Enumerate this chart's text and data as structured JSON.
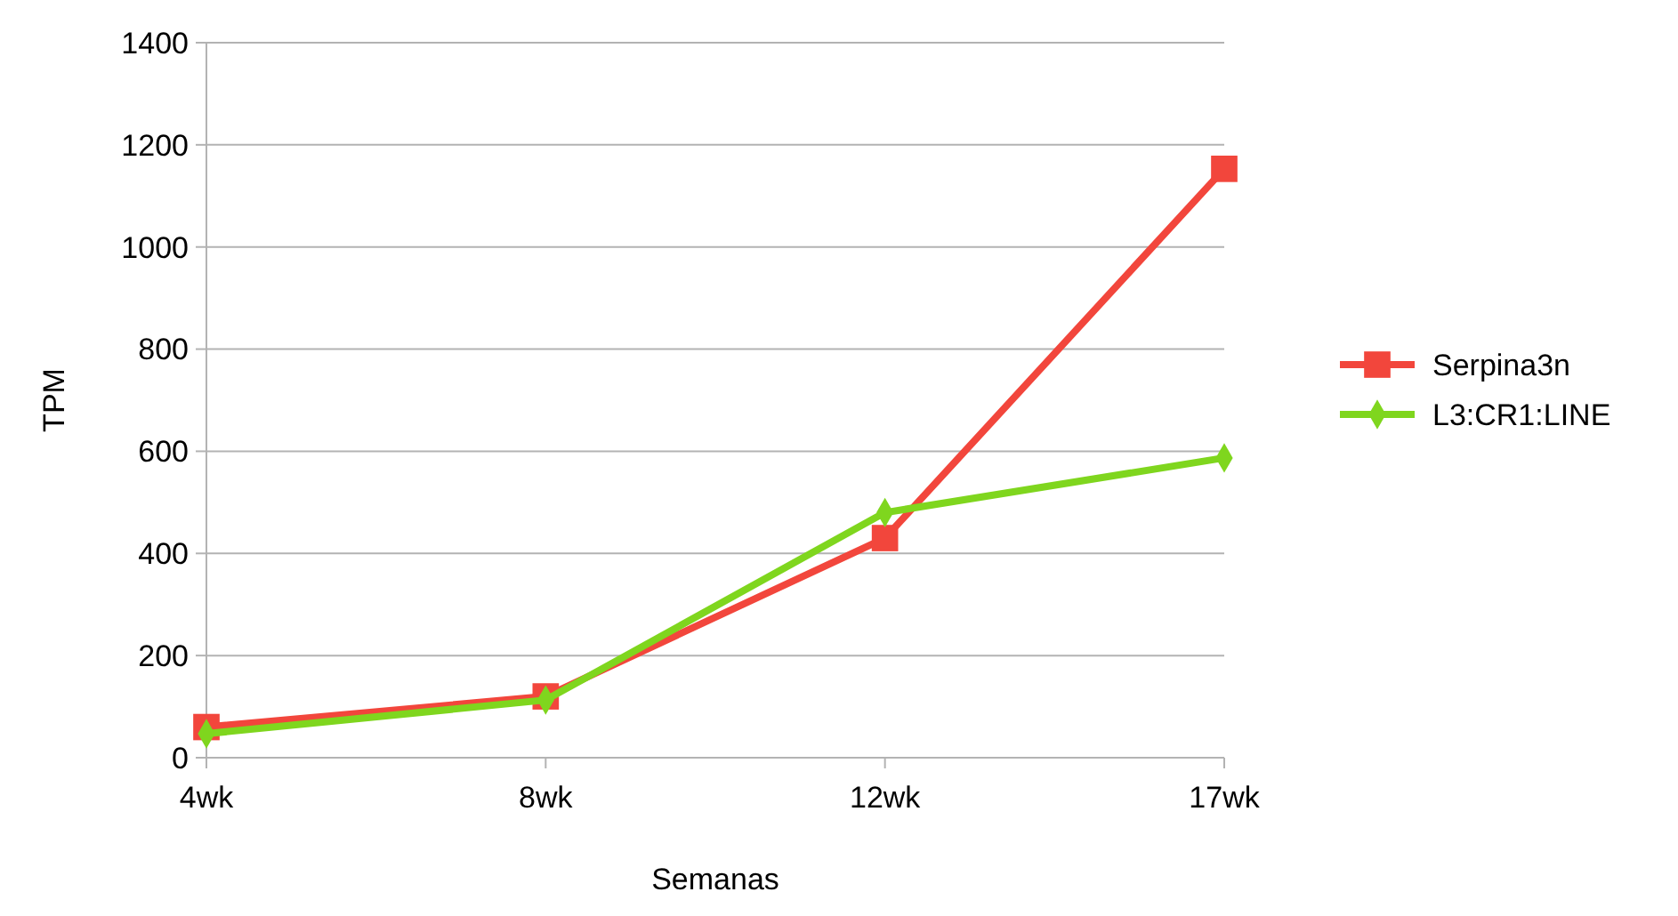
{
  "chart_data": {
    "type": "line",
    "xlabel": "Semanas",
    "ylabel": "TPM",
    "categories": [
      "4wk",
      "8wk",
      "12wk",
      "17wk"
    ],
    "series": [
      {
        "name": "Serpina3n",
        "color": "#f2463c",
        "marker": "square",
        "values": [
          60,
          120,
          430,
          1153
        ]
      },
      {
        "name": "L3:CR1:LINE",
        "color": "#7fd61e",
        "marker": "diamond",
        "values": [
          47,
          113,
          480,
          587
        ]
      }
    ],
    "ylim": [
      0,
      1400
    ],
    "yticks": [
      0,
      200,
      400,
      600,
      800,
      1000,
      1200,
      1400
    ],
    "grid": "y",
    "legend": "right",
    "line_style": "solid"
  }
}
